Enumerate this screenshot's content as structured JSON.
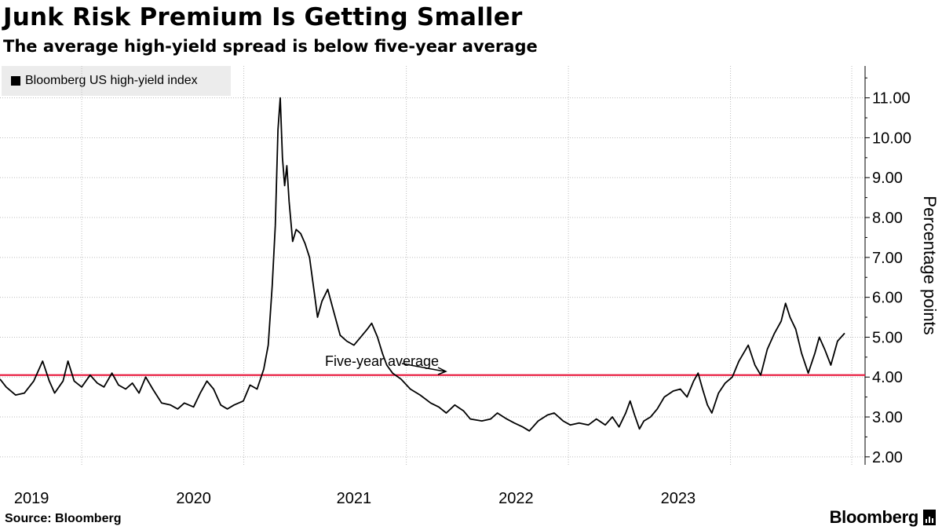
{
  "header": {
    "title": "Junk Risk Premium Is Getting Smaller",
    "subtitle": "The average high-yield spread is below five-year average"
  },
  "footer": {
    "source": "Source: Bloomberg",
    "brand": "Bloomberg"
  },
  "colors": {
    "line": "#000000",
    "average_line": "#e8183c",
    "grid": "#bdbdbd",
    "legend_bg": "#ececec"
  },
  "chart_data": {
    "type": "line",
    "title": "Junk Risk Premium Is Getting Smaller",
    "subtitle": "The average high-yield spread is below five-year average",
    "ylabel": "Percentage points",
    "xlabel": "",
    "legend": "top-left",
    "grid": true,
    "x_ticks": [
      "2019",
      "2020",
      "2021",
      "2022",
      "2023"
    ],
    "xlim": [
      "2018-07-01",
      "2023-10-31"
    ],
    "ylim": [
      1.8,
      11.8
    ],
    "y_ticks": [
      "2.00",
      "3.00",
      "4.00",
      "5.00",
      "6.00",
      "7.00",
      "8.00",
      "9.00",
      "10.00",
      "11.00"
    ],
    "reference_line": {
      "label": "Five-year average",
      "value": 4.05
    },
    "series": [
      {
        "name": "Bloomberg US high-yield index",
        "points": [
          [
            "2018-07-01",
            3.95
          ],
          [
            "2018-07-15",
            3.75
          ],
          [
            "2018-08-05",
            3.55
          ],
          [
            "2018-08-25",
            3.6
          ],
          [
            "2018-09-15",
            3.9
          ],
          [
            "2018-10-05",
            4.4
          ],
          [
            "2018-10-20",
            3.9
          ],
          [
            "2018-11-01",
            3.6
          ],
          [
            "2018-11-20",
            3.9
          ],
          [
            "2018-12-01",
            4.4
          ],
          [
            "2018-12-15",
            3.9
          ],
          [
            "2019-01-01",
            3.75
          ],
          [
            "2019-01-20",
            4.05
          ],
          [
            "2019-02-05",
            3.85
          ],
          [
            "2019-02-20",
            3.75
          ],
          [
            "2019-03-10",
            4.1
          ],
          [
            "2019-03-25",
            3.8
          ],
          [
            "2019-04-10",
            3.7
          ],
          [
            "2019-04-25",
            3.85
          ],
          [
            "2019-05-10",
            3.6
          ],
          [
            "2019-05-25",
            4.0
          ],
          [
            "2019-06-10",
            3.7
          ],
          [
            "2019-06-30",
            3.35
          ],
          [
            "2019-07-20",
            3.3
          ],
          [
            "2019-08-05",
            3.2
          ],
          [
            "2019-08-20",
            3.35
          ],
          [
            "2019-09-10",
            3.25
          ],
          [
            "2019-09-25",
            3.6
          ],
          [
            "2019-10-10",
            3.9
          ],
          [
            "2019-10-25",
            3.7
          ],
          [
            "2019-11-10",
            3.3
          ],
          [
            "2019-11-25",
            3.2
          ],
          [
            "2019-12-10",
            3.3
          ],
          [
            "2019-12-31",
            3.4
          ],
          [
            "2020-01-15",
            3.8
          ],
          [
            "2020-01-31",
            3.7
          ],
          [
            "2020-02-15",
            4.2
          ],
          [
            "2020-02-25",
            4.8
          ],
          [
            "2020-03-05",
            6.3
          ],
          [
            "2020-03-12",
            7.8
          ],
          [
            "2020-03-18",
            10.2
          ],
          [
            "2020-03-23",
            11.0
          ],
          [
            "2020-03-28",
            9.5
          ],
          [
            "2020-04-02",
            8.8
          ],
          [
            "2020-04-07",
            9.3
          ],
          [
            "2020-04-12",
            8.4
          ],
          [
            "2020-04-20",
            7.4
          ],
          [
            "2020-04-28",
            7.7
          ],
          [
            "2020-05-08",
            7.6
          ],
          [
            "2020-05-18",
            7.35
          ],
          [
            "2020-05-28",
            7.0
          ],
          [
            "2020-06-08",
            6.1
          ],
          [
            "2020-06-15",
            5.5
          ],
          [
            "2020-06-25",
            5.9
          ],
          [
            "2020-07-08",
            6.2
          ],
          [
            "2020-07-20",
            5.7
          ],
          [
            "2020-08-05",
            5.05
          ],
          [
            "2020-08-20",
            4.9
          ],
          [
            "2020-09-05",
            4.8
          ],
          [
            "2020-09-20",
            5.0
          ],
          [
            "2020-10-05",
            5.2
          ],
          [
            "2020-10-15",
            5.35
          ],
          [
            "2020-10-28",
            5.0
          ],
          [
            "2020-11-08",
            4.6
          ],
          [
            "2020-11-18",
            4.3
          ],
          [
            "2020-12-01",
            4.1
          ],
          [
            "2020-12-20",
            3.95
          ],
          [
            "2021-01-10",
            3.7
          ],
          [
            "2021-02-01",
            3.55
          ],
          [
            "2021-02-25",
            3.35
          ],
          [
            "2021-03-15",
            3.25
          ],
          [
            "2021-04-01",
            3.1
          ],
          [
            "2021-04-20",
            3.3
          ],
          [
            "2021-05-10",
            3.15
          ],
          [
            "2021-05-25",
            2.95
          ],
          [
            "2021-06-20",
            2.9
          ],
          [
            "2021-07-10",
            2.95
          ],
          [
            "2021-07-25",
            3.1
          ],
          [
            "2021-08-15",
            2.95
          ],
          [
            "2021-09-01",
            2.85
          ],
          [
            "2021-09-20",
            2.75
          ],
          [
            "2021-10-05",
            2.65
          ],
          [
            "2021-10-25",
            2.9
          ],
          [
            "2021-11-15",
            3.05
          ],
          [
            "2021-11-30",
            3.1
          ],
          [
            "2021-12-20",
            2.9
          ],
          [
            "2022-01-05",
            2.8
          ],
          [
            "2022-01-25",
            2.85
          ],
          [
            "2022-02-15",
            2.8
          ],
          [
            "2022-03-05",
            2.95
          ],
          [
            "2022-03-25",
            2.8
          ],
          [
            "2022-04-10",
            3.0
          ],
          [
            "2022-04-25",
            2.75
          ],
          [
            "2022-05-10",
            3.1
          ],
          [
            "2022-05-20",
            3.4
          ],
          [
            "2022-05-30",
            3.05
          ],
          [
            "2022-06-10",
            2.7
          ],
          [
            "2022-06-20",
            2.9
          ],
          [
            "2022-07-05",
            3.0
          ],
          [
            "2022-07-20",
            3.2
          ],
          [
            "2022-08-05",
            3.5
          ],
          [
            "2022-08-25",
            3.65
          ],
          [
            "2022-09-10",
            3.7
          ],
          [
            "2022-09-25",
            3.5
          ],
          [
            "2022-10-10",
            3.9
          ],
          [
            "2022-10-20",
            4.1
          ],
          [
            "2022-10-30",
            3.7
          ],
          [
            "2022-11-10",
            3.3
          ],
          [
            "2022-11-20",
            3.1
          ],
          [
            "2022-12-05",
            3.6
          ],
          [
            "2022-12-20",
            3.85
          ],
          [
            "2023-01-05",
            4.0
          ],
          [
            "2023-01-20",
            4.4
          ],
          [
            "2023-02-10",
            4.8
          ],
          [
            "2023-02-25",
            4.3
          ],
          [
            "2023-03-10",
            4.05
          ],
          [
            "2023-03-25",
            4.7
          ],
          [
            "2023-04-10",
            5.1
          ],
          [
            "2023-04-25",
            5.4
          ],
          [
            "2023-05-05",
            5.85
          ],
          [
            "2023-05-15",
            5.5
          ],
          [
            "2023-05-28",
            5.2
          ],
          [
            "2023-06-10",
            4.6
          ],
          [
            "2023-06-25",
            4.1
          ],
          [
            "2023-07-10",
            4.6
          ],
          [
            "2023-07-20",
            5.0
          ],
          [
            "2023-08-01",
            4.7
          ],
          [
            "2023-08-15",
            4.3
          ],
          [
            "2023-08-30",
            4.9
          ],
          [
            "2023-09-15",
            5.1
          ]
        ]
      }
    ]
  }
}
